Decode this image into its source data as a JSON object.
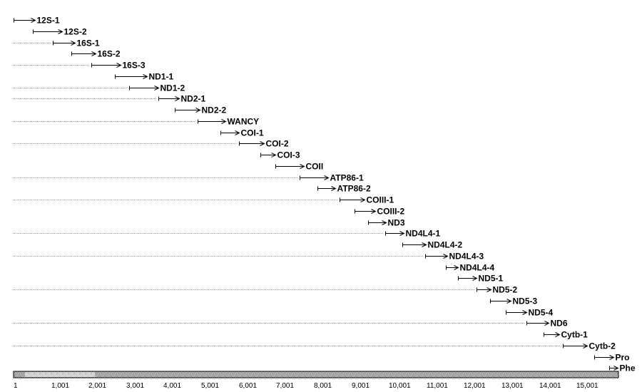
{
  "chart_data": {
    "type": "diagram",
    "x_range": [
      1,
      16100
    ],
    "axis_ticks": [
      {
        "value": 1,
        "label": "1"
      },
      {
        "value": 1001,
        "label": "1,001"
      },
      {
        "value": 2001,
        "label": "2,001"
      },
      {
        "value": 3001,
        "label": "3,001"
      },
      {
        "value": 4001,
        "label": "4,001"
      },
      {
        "value": 5001,
        "label": "5,001"
      },
      {
        "value": 6001,
        "label": "6,001"
      },
      {
        "value": 7001,
        "label": "7,001"
      },
      {
        "value": 8001,
        "label": "8,001"
      },
      {
        "value": 9001,
        "label": "9,001"
      },
      {
        "value": 10001,
        "label": "10,001"
      },
      {
        "value": 11001,
        "label": "11,001"
      },
      {
        "value": 12001,
        "label": "12,001"
      },
      {
        "value": 13001,
        "label": "13,001"
      },
      {
        "value": 14001,
        "label": "14,001"
      },
      {
        "value": 15001,
        "label": "15,001"
      }
    ],
    "primers": [
      {
        "label": "12S-1",
        "start": 0,
        "end": 580,
        "guide": false
      },
      {
        "label": "12S-2",
        "start": 520,
        "end": 1300,
        "guide": false
      },
      {
        "label": "16S-1",
        "start": 1050,
        "end": 1640,
        "guide": true
      },
      {
        "label": "16S-2",
        "start": 1540,
        "end": 2180,
        "guide": false
      },
      {
        "label": "16S-3",
        "start": 2080,
        "end": 2860,
        "guide": true
      },
      {
        "label": "ND1-1",
        "start": 2700,
        "end": 3560,
        "guide": false
      },
      {
        "label": "ND1-2",
        "start": 3080,
        "end": 3860,
        "guide": true
      },
      {
        "label": "ND2-1",
        "start": 3860,
        "end": 4420,
        "guide": true
      },
      {
        "label": "ND2-2",
        "start": 4300,
        "end": 4960,
        "guide": false
      },
      {
        "label": "WANCY",
        "start": 4900,
        "end": 5640,
        "guide": true
      },
      {
        "label": "COI-1",
        "start": 5510,
        "end": 6000,
        "guide": false
      },
      {
        "label": "COI-2",
        "start": 6010,
        "end": 6680,
        "guide": true
      },
      {
        "label": "COI-3",
        "start": 6580,
        "end": 6980,
        "guide": false
      },
      {
        "label": "COII",
        "start": 6980,
        "end": 7740,
        "guide": false
      },
      {
        "label": "ATP86-1",
        "start": 7620,
        "end": 8380,
        "guide": true
      },
      {
        "label": "ATP86-2",
        "start": 8100,
        "end": 8580,
        "guide": false
      },
      {
        "label": "COIII-1",
        "start": 8680,
        "end": 9360,
        "guide": true
      },
      {
        "label": "COIII-2",
        "start": 9080,
        "end": 9640,
        "guide": false
      },
      {
        "label": "ND3",
        "start": 9440,
        "end": 9920,
        "guide": false
      },
      {
        "label": "ND4L4-1",
        "start": 9900,
        "end": 10400,
        "guide": true
      },
      {
        "label": "ND4L4-2",
        "start": 10360,
        "end": 10980,
        "guide": false
      },
      {
        "label": "ND4L4-3",
        "start": 10960,
        "end": 11560,
        "guide": true
      },
      {
        "label": "ND4L4-4",
        "start": 11520,
        "end": 11840,
        "guide": false
      },
      {
        "label": "ND5-1",
        "start": 11840,
        "end": 12340,
        "guide": false
      },
      {
        "label": "ND5-2",
        "start": 12340,
        "end": 12720,
        "guide": true
      },
      {
        "label": "ND5-3",
        "start": 12700,
        "end": 13240,
        "guide": false
      },
      {
        "label": "ND5-4",
        "start": 13120,
        "end": 13660,
        "guide": false
      },
      {
        "label": "ND6",
        "start": 13660,
        "end": 14260,
        "guide": true
      },
      {
        "label": "Cytb-1",
        "start": 14120,
        "end": 14540,
        "guide": false
      },
      {
        "label": "Cytb-2",
        "start": 14640,
        "end": 15280,
        "guide": true
      },
      {
        "label": "Pro",
        "start": 15470,
        "end": 15980,
        "guide": false
      },
      {
        "label": "Phe",
        "start": 15880,
        "end": 16100,
        "guide": false
      }
    ]
  },
  "colors": {
    "arrow": "#000000",
    "guide": "#9a9a9a",
    "genome_bar_fill": "#808080",
    "genome_bar_pale": "#d8d8d8"
  }
}
